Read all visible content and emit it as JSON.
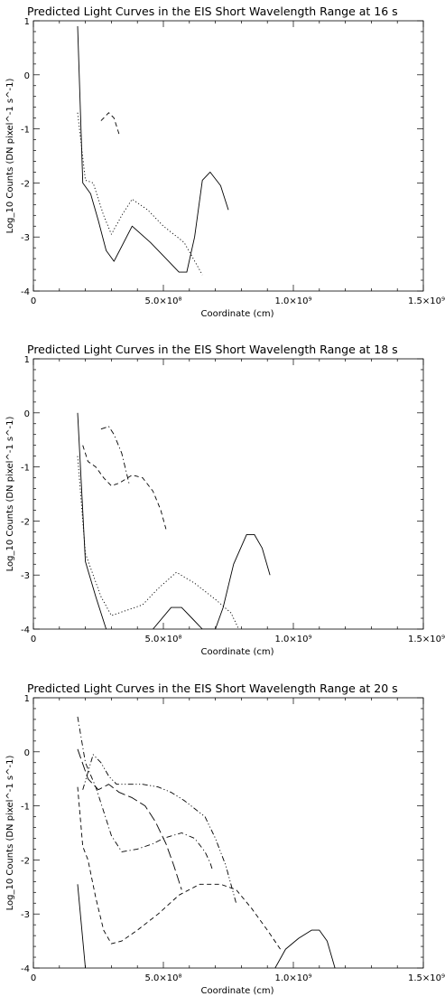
{
  "chart_data": [
    {
      "type": "line",
      "title": "Predicted Light Curves in the EIS Short Wavelength Range at 16 s",
      "xlabel": "Coordinate (cm)",
      "ylabel": "Log_10 Counts (DN pixel^-1 s^-1)",
      "xlim": [
        0,
        1500000000
      ],
      "ylim": [
        -4,
        1
      ],
      "grid": false,
      "x_tick_labels": [
        "0",
        "5.0×10⁸",
        "1.0×10⁹",
        "1.5×10⁹"
      ],
      "y_tick_labels": [
        "-4",
        "-3",
        "-2",
        "-1",
        "0",
        "1"
      ],
      "series": [
        {
          "style": "solid",
          "x": [
            170000000,
            190000000,
            220000000,
            250000000,
            280000000,
            310000000,
            380000000,
            450000000,
            500000000,
            560000000,
            590000000,
            620000000,
            650000000,
            680000000,
            720000000,
            750000000
          ],
          "y": [
            0.9,
            -2.0,
            -2.2,
            -2.7,
            -3.25,
            -3.45,
            -2.8,
            -3.1,
            -3.35,
            -3.65,
            -3.65,
            -3.0,
            -1.95,
            -1.8,
            -2.05,
            -2.5
          ]
        },
        {
          "style": "dotted",
          "x": [
            170000000,
            200000000,
            230000000,
            270000000,
            300000000,
            340000000,
            380000000,
            440000000,
            500000000,
            580000000,
            650000000
          ],
          "y": [
            -0.7,
            -1.95,
            -2.0,
            -2.6,
            -2.95,
            -2.6,
            -2.3,
            -2.5,
            -2.8,
            -3.1,
            -3.7
          ]
        },
        {
          "style": "dashed",
          "x": [
            260000000,
            290000000,
            310000000,
            330000000
          ],
          "y": [
            -0.85,
            -0.7,
            -0.8,
            -1.1
          ]
        }
      ]
    },
    {
      "type": "line",
      "title": "Predicted Light Curves in the EIS Short Wavelength Range at 18 s",
      "xlabel": "Coordinate (cm)",
      "ylabel": "Log_10 Counts (DN pixel^-1 s^-1)",
      "xlim": [
        0,
        1500000000
      ],
      "ylim": [
        -4,
        1
      ],
      "grid": false,
      "x_tick_labels": [
        "0",
        "5.0×10⁸",
        "1.0×10⁹",
        "1.5×10⁹"
      ],
      "y_tick_labels": [
        "-4",
        "-3",
        "-2",
        "-1",
        "0",
        "1"
      ],
      "series": [
        {
          "style": "solid",
          "x": [
            170000000,
            200000000,
            240000000,
            280000000
          ],
          "y": [
            0.0,
            -2.75,
            -3.4,
            -4.0
          ]
        },
        {
          "style": "solid",
          "x": [
            460000000,
            530000000,
            570000000,
            610000000,
            650000000,
            700000000
          ],
          "y": [
            -4.0,
            -3.6,
            -3.6,
            -3.8,
            -4.0,
            -4.0
          ]
        },
        {
          "style": "solid",
          "x": [
            700000000,
            730000000,
            770000000,
            820000000,
            850000000,
            880000000,
            910000000
          ],
          "y": [
            -4.0,
            -3.6,
            -2.8,
            -2.25,
            -2.25,
            -2.5,
            -3.0
          ]
        },
        {
          "style": "dotted",
          "x": [
            170000000,
            200000000,
            230000000,
            260000000,
            300000000,
            360000000,
            420000000,
            480000000,
            550000000,
            620000000,
            700000000,
            760000000,
            790000000
          ],
          "y": [
            -0.8,
            -2.6,
            -3.0,
            -3.4,
            -3.75,
            -3.65,
            -3.55,
            -3.25,
            -2.95,
            -3.15,
            -3.45,
            -3.7,
            -4.0
          ]
        },
        {
          "style": "dashed",
          "x": [
            190000000,
            210000000,
            240000000,
            270000000,
            300000000,
            330000000,
            380000000,
            420000000,
            460000000,
            490000000,
            510000000
          ],
          "y": [
            -0.6,
            -0.9,
            -1.0,
            -1.2,
            -1.35,
            -1.3,
            -1.15,
            -1.2,
            -1.45,
            -1.8,
            -2.15
          ]
        },
        {
          "style": "dash-dot",
          "x": [
            260000000,
            290000000,
            310000000,
            340000000,
            370000000
          ],
          "y": [
            -0.3,
            -0.25,
            -0.4,
            -0.75,
            -1.35
          ]
        }
      ]
    },
    {
      "type": "line",
      "title": "Predicted Light Curves in the EIS Short Wavelength Range at 20 s",
      "xlabel": "Coordinate (cm)",
      "ylabel": "Log_10 Counts (DN pixel^-1 s^-1)",
      "xlim": [
        0,
        1500000000
      ],
      "ylim": [
        -4,
        1
      ],
      "grid": false,
      "x_tick_labels": [
        "0",
        "5.0×10⁸",
        "1.0×10⁹",
        "1.5×10⁹"
      ],
      "y_tick_labels": [
        "-4",
        "-3",
        "-2",
        "-1",
        "0",
        "1"
      ],
      "series": [
        {
          "style": "solid",
          "x": [
            170000000,
            200000000
          ],
          "y": [
            -2.45,
            -4.0
          ]
        },
        {
          "style": "solid",
          "x": [
            930000000,
            970000000,
            1020000000,
            1070000000,
            1100000000,
            1130000000,
            1160000000
          ],
          "y": [
            -4.0,
            -3.65,
            -3.45,
            -3.3,
            -3.3,
            -3.5,
            -4.0
          ]
        },
        {
          "style": "dashed",
          "x": [
            170000000,
            190000000,
            210000000,
            240000000,
            270000000,
            300000000,
            340000000,
            400000000,
            480000000,
            560000000,
            640000000,
            720000000,
            780000000,
            840000000,
            900000000,
            950000000
          ],
          "y": [
            -0.65,
            -1.75,
            -2.0,
            -2.7,
            -3.3,
            -3.55,
            -3.5,
            -3.3,
            -3.0,
            -2.65,
            -2.45,
            -2.45,
            -2.55,
            -2.9,
            -3.3,
            -3.65
          ]
        },
        {
          "style": "dash-dot",
          "x": [
            170000000,
            200000000,
            240000000,
            270000000,
            300000000,
            340000000,
            400000000,
            460000000,
            500000000,
            570000000,
            620000000,
            660000000,
            680000000,
            690000000
          ],
          "y": [
            0.65,
            -0.2,
            -0.65,
            -1.1,
            -1.55,
            -1.85,
            -1.8,
            -1.7,
            -1.6,
            -1.5,
            -1.6,
            -1.85,
            -2.05,
            -2.2
          ]
        },
        {
          "style": "long-dash",
          "x": [
            170000000,
            210000000,
            250000000,
            290000000,
            330000000,
            380000000,
            430000000,
            470000000,
            510000000,
            540000000,
            570000000
          ],
          "y": [
            0.05,
            -0.5,
            -0.7,
            -0.6,
            -0.75,
            -0.85,
            -1.0,
            -1.3,
            -1.7,
            -2.1,
            -2.55
          ]
        },
        {
          "style": "dash-dot-dot",
          "x": [
            190000000,
            230000000,
            260000000,
            290000000,
            320000000,
            360000000,
            420000000,
            480000000,
            530000000,
            580000000,
            620000000,
            660000000,
            700000000,
            740000000,
            780000000
          ],
          "y": [
            -0.7,
            -0.05,
            -0.2,
            -0.45,
            -0.6,
            -0.6,
            -0.6,
            -0.65,
            -0.75,
            -0.9,
            -1.05,
            -1.2,
            -1.6,
            -2.1,
            -2.8
          ]
        }
      ]
    }
  ]
}
